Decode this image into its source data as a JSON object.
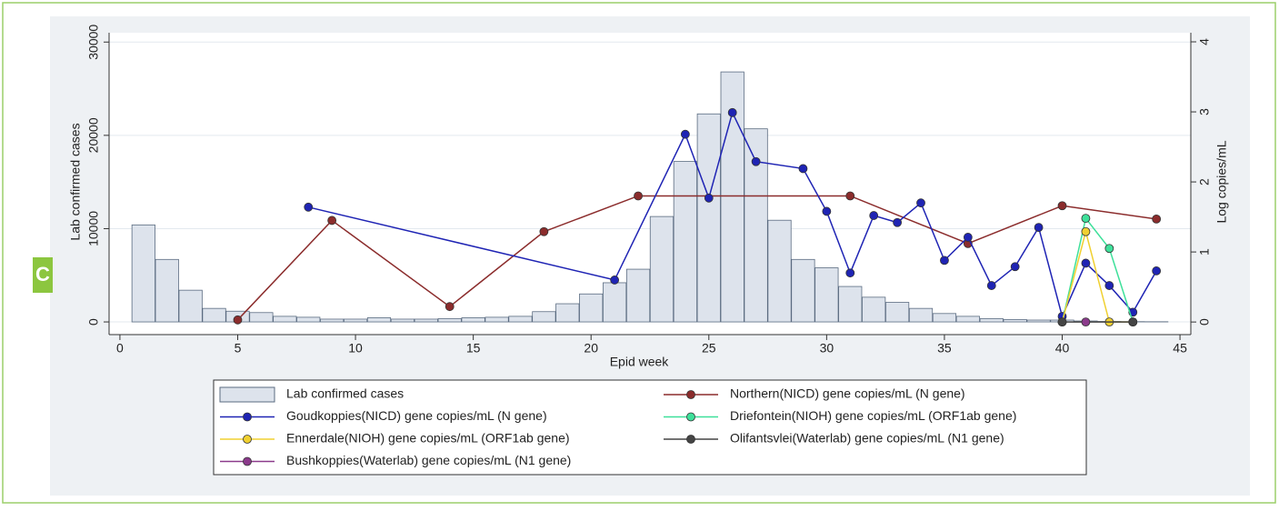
{
  "chart_data": {
    "type": "combo",
    "panel_label": "C",
    "xlabel": "Epid week",
    "ylabel": "Lab confirmed cases",
    "y2label": "Log copies/mL",
    "xlim": [
      -0.46,
      45.46
    ],
    "xticks": [
      0,
      5,
      10,
      15,
      20,
      25,
      30,
      35,
      40,
      45
    ],
    "ylim": [
      -1360,
      31000
    ],
    "yticks": [
      0,
      10000,
      20000,
      30000
    ],
    "y2lim": [
      -0.18,
      4.13
    ],
    "y2ticks": [
      0,
      1,
      2,
      3,
      4
    ],
    "grid": true,
    "legend": "bottom",
    "series": [
      {
        "name": "Lab confirmed cases",
        "type": "bar",
        "color": "#dde3ec",
        "x": [
          1,
          2,
          3,
          4,
          5,
          6,
          7,
          8,
          9,
          10,
          11,
          12,
          13,
          14,
          15,
          16,
          17,
          18,
          19,
          20,
          21,
          22,
          23,
          24,
          25,
          26,
          27,
          28,
          29,
          30,
          31,
          32,
          33,
          34,
          35,
          36,
          37,
          38,
          39,
          40,
          41,
          42,
          43,
          44
        ],
        "values": [
          10400,
          6700,
          3400,
          1450,
          1150,
          1000,
          600,
          500,
          300,
          300,
          450,
          300,
          300,
          350,
          450,
          500,
          600,
          1100,
          1950,
          3000,
          4200,
          5650,
          11300,
          17200,
          22300,
          26800,
          20700,
          10900,
          6700,
          5800,
          3800,
          2650,
          2100,
          1450,
          900,
          600,
          350,
          250,
          200,
          200,
          100,
          50,
          30,
          20
        ]
      },
      {
        "name": "Northern(NICD) gene copies/mL (N gene)",
        "type": "line",
        "axis": "y2",
        "color": "#8b2c2c",
        "x": [
          5,
          9,
          14,
          18,
          22,
          31,
          36,
          40,
          44
        ],
        "values": [
          0.03,
          1.45,
          0.22,
          1.29,
          1.8,
          1.8,
          1.12,
          1.66,
          1.47
        ]
      },
      {
        "name": "Goudkoppies(NICD) gene copies/mL (N gene)",
        "type": "line",
        "axis": "y2",
        "color": "#1f24b4",
        "x": [
          8,
          21,
          24,
          25,
          26,
          27,
          29,
          30,
          31,
          32,
          33,
          34,
          35,
          36,
          37,
          38,
          39,
          40,
          41,
          42,
          43,
          44
        ],
        "values": [
          1.64,
          0.6,
          2.68,
          1.77,
          2.99,
          2.29,
          2.19,
          1.58,
          0.7,
          1.52,
          1.42,
          1.7,
          0.88,
          1.21,
          0.52,
          0.79,
          1.35,
          0.08,
          0.84,
          0.52,
          0.14,
          0.73
        ]
      },
      {
        "name": "Driefontein(NIOH) gene copies/mL (ORF1ab gene)",
        "type": "line",
        "axis": "y2",
        "color": "#3ee09a",
        "x": [
          40,
          41,
          42,
          43
        ],
        "values": [
          0,
          1.48,
          1.05,
          0
        ]
      },
      {
        "name": "Ennerdale(NIOH) gene copies/mL (ORF1ab gene)",
        "type": "line",
        "axis": "y2",
        "color": "#f0d030",
        "x": [
          40,
          41,
          42,
          43
        ],
        "values": [
          0,
          1.29,
          0,
          0
        ]
      },
      {
        "name": "Olifantsvlei(Waterlab) gene copies/mL (N1 gene)",
        "type": "line",
        "axis": "y2",
        "color": "#444444",
        "x": [
          40,
          43
        ],
        "values": [
          0,
          0
        ]
      },
      {
        "name": "Bushkoppies(Waterlab) gene copies/mL (N1 gene)",
        "type": "line",
        "axis": "y2",
        "color": "#8b3a8b",
        "x": [
          41
        ],
        "values": [
          0
        ]
      }
    ]
  }
}
